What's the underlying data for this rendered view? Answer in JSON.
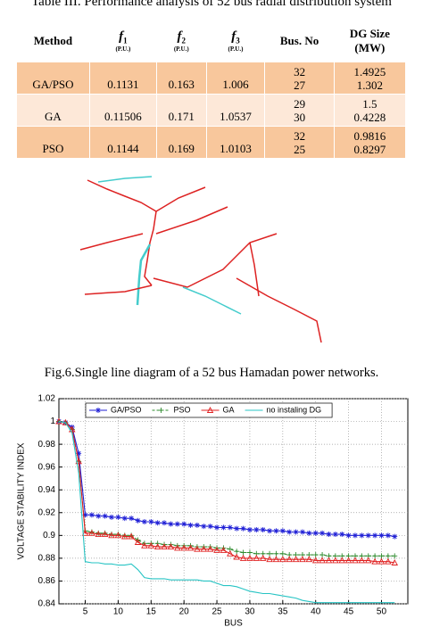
{
  "caption": "Table III. Performance analysis of 52 bus radial distribution system",
  "table": {
    "header": [
      {
        "text": "Method"
      },
      {
        "text": "f",
        "sub": "1",
        "unit": "(P.U.)"
      },
      {
        "text": "f",
        "sub": "2",
        "unit": "(P.U.)"
      },
      {
        "text": "f",
        "sub": "3",
        "unit": "(P.U.)"
      },
      {
        "text": "Bus. No"
      },
      {
        "text": "DG Size",
        "unit": "(MW)"
      }
    ],
    "rows": [
      {
        "method": "GA/PSO",
        "f1": "0.1131",
        "f2": "0.163",
        "f3": "1.006",
        "bus": [
          "32",
          "27"
        ],
        "dg": [
          "1.4925",
          "1.302"
        ],
        "color": "#f8c79c"
      },
      {
        "method": "GA",
        "f1": "0.11506",
        "f2": "0.171",
        "f3": "1.0537",
        "bus": [
          "29",
          "30"
        ],
        "dg": [
          "1.5",
          "0.4228"
        ],
        "color": "#fde8d8"
      },
      {
        "method": "PSO",
        "f1": "0.1144",
        "f2": "0.169",
        "f3": "1.0103",
        "bus": [
          "32",
          "25"
        ],
        "dg": [
          "0.9816",
          "0.8297"
        ],
        "color": "#f8c79c"
      }
    ]
  },
  "figure_caption": "Fig.6.Single line diagram of a 52 bus Hamadan power networks.",
  "chart_data": {
    "type": "line",
    "x_label": "BUS",
    "y_label": "VOLTAGE STABILITY INDEX",
    "x": [
      1,
      2,
      3,
      4,
      5,
      6,
      7,
      8,
      9,
      10,
      11,
      12,
      13,
      14,
      15,
      16,
      17,
      18,
      19,
      20,
      21,
      22,
      23,
      24,
      25,
      26,
      27,
      28,
      29,
      30,
      31,
      32,
      33,
      34,
      35,
      36,
      37,
      38,
      39,
      40,
      41,
      42,
      43,
      44,
      45,
      46,
      47,
      48,
      49,
      50,
      51,
      52
    ],
    "xlim": [
      1,
      54
    ],
    "xticks": [
      5,
      10,
      15,
      20,
      25,
      30,
      35,
      40,
      45,
      50
    ],
    "ylim": [
      0.84,
      1.02
    ],
    "yticks": [
      0.84,
      0.86,
      0.88,
      0.9,
      0.92,
      0.94,
      0.96,
      0.98,
      1,
      1.02
    ],
    "grid": true,
    "legend": "top",
    "series": [
      {
        "name": "GA/PSO",
        "color": "#1f1fd6",
        "marker": "asterisk",
        "dash": false,
        "values": [
          1.0,
          0.999,
          0.995,
          0.972,
          0.918,
          0.918,
          0.917,
          0.917,
          0.916,
          0.916,
          0.915,
          0.915,
          0.913,
          0.912,
          0.912,
          0.911,
          0.911,
          0.91,
          0.91,
          0.91,
          0.909,
          0.909,
          0.908,
          0.908,
          0.907,
          0.907,
          0.907,
          0.906,
          0.906,
          0.905,
          0.905,
          0.905,
          0.904,
          0.904,
          0.904,
          0.903,
          0.903,
          0.903,
          0.902,
          0.902,
          0.902,
          0.901,
          0.901,
          0.901,
          0.9,
          0.9,
          0.9,
          0.9,
          0.9,
          0.9,
          0.9,
          0.899
        ]
      },
      {
        "name": "PSO",
        "color": "#2e8b2e",
        "marker": "plus",
        "dash": true,
        "values": [
          1.0,
          0.999,
          0.993,
          0.965,
          0.904,
          0.903,
          0.902,
          0.902,
          0.901,
          0.901,
          0.9,
          0.9,
          0.896,
          0.893,
          0.893,
          0.893,
          0.892,
          0.892,
          0.891,
          0.891,
          0.891,
          0.89,
          0.89,
          0.89,
          0.889,
          0.889,
          0.888,
          0.886,
          0.885,
          0.885,
          0.884,
          0.884,
          0.884,
          0.884,
          0.884,
          0.883,
          0.883,
          0.883,
          0.883,
          0.883,
          0.883,
          0.882,
          0.882,
          0.882,
          0.882,
          0.882,
          0.882,
          0.882,
          0.882,
          0.882,
          0.882,
          0.882
        ]
      },
      {
        "name": "GA",
        "color": "#e02020",
        "marker": "triangle",
        "dash": false,
        "values": [
          1.0,
          0.999,
          0.993,
          0.965,
          0.902,
          0.902,
          0.901,
          0.901,
          0.9,
          0.9,
          0.899,
          0.899,
          0.894,
          0.891,
          0.891,
          0.89,
          0.89,
          0.89,
          0.889,
          0.889,
          0.889,
          0.888,
          0.888,
          0.888,
          0.887,
          0.887,
          0.884,
          0.881,
          0.88,
          0.88,
          0.88,
          0.88,
          0.879,
          0.879,
          0.879,
          0.879,
          0.879,
          0.879,
          0.879,
          0.878,
          0.878,
          0.878,
          0.878,
          0.878,
          0.878,
          0.878,
          0.878,
          0.878,
          0.877,
          0.877,
          0.877,
          0.876
        ]
      },
      {
        "name": "no instaling DG",
        "color": "#27c4c4",
        "marker": "none",
        "dash": false,
        "values": [
          1.0,
          0.999,
          0.99,
          0.955,
          0.877,
          0.876,
          0.876,
          0.875,
          0.875,
          0.874,
          0.874,
          0.875,
          0.87,
          0.863,
          0.862,
          0.862,
          0.862,
          0.861,
          0.861,
          0.861,
          0.861,
          0.861,
          0.86,
          0.86,
          0.858,
          0.856,
          0.856,
          0.855,
          0.853,
          0.851,
          0.85,
          0.849,
          0.849,
          0.848,
          0.847,
          0.846,
          0.845,
          0.843,
          0.842,
          0.841,
          0.841,
          0.841,
          0.841,
          0.841,
          0.841,
          0.841,
          0.841,
          0.841,
          0.841,
          0.841,
          0.841,
          0.841
        ]
      }
    ]
  }
}
